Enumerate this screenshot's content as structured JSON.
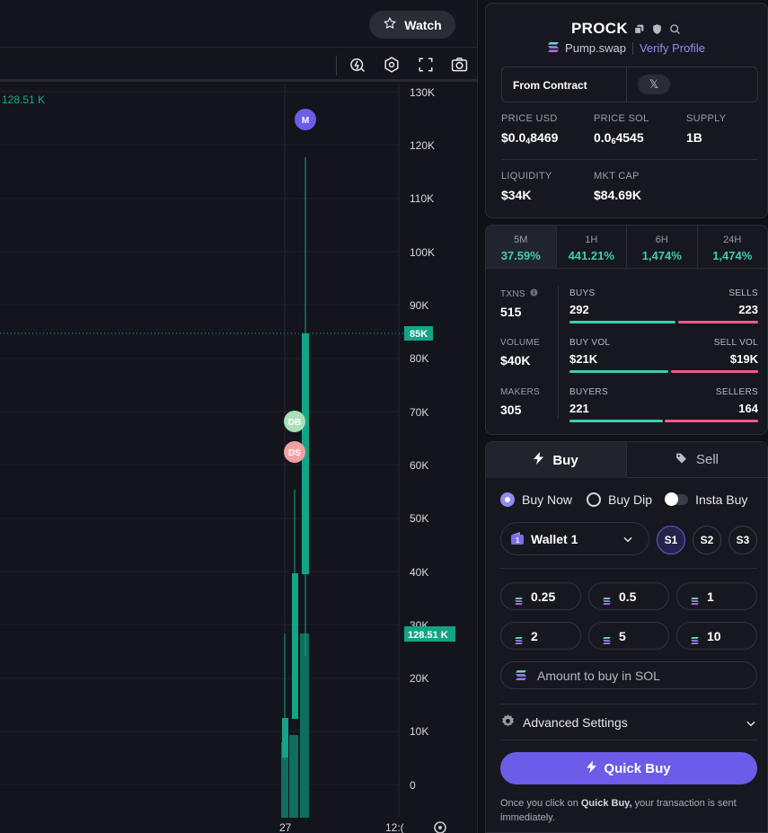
{
  "chart": {
    "watch_label": "Watch",
    "price_tag": "128.51 K",
    "y_ticks": [
      "130K",
      "120K",
      "110K",
      "100K",
      "90K",
      "80K",
      "70K",
      "60K",
      "50K",
      "40K",
      "30K",
      "20K",
      "10K",
      "0"
    ],
    "line_tag": "85K",
    "price_tag_right": "128.51 K",
    "x_labels": [
      "27",
      "12:("
    ],
    "markers": {
      "m": "M",
      "db": "DB",
      "ds": "DS"
    }
  },
  "token": {
    "name": "PROCK",
    "platform": "Pump.swap",
    "verify": "Verify Profile",
    "contract_label": "From Contract",
    "x_label": "𝕏",
    "stats": {
      "price_usd_label": "PRICE USD",
      "price_usd_pre": "$0.0",
      "price_usd_sub": "4",
      "price_usd_post": "8469",
      "price_sol_label": "PRICE SOL",
      "price_sol_pre": "0.0",
      "price_sol_sub": "6",
      "price_sol_post": "4545",
      "supply_label": "SUPPLY",
      "supply": "1B",
      "liquidity_label": "LIQUIDITY",
      "liquidity": "$34K",
      "mktcap_label": "MKT CAP",
      "mktcap": "$84.69K"
    }
  },
  "metrics": {
    "timeframes": [
      {
        "label": "5M",
        "value": "37.59%"
      },
      {
        "label": "1H",
        "value": "441.21%"
      },
      {
        "label": "6H",
        "value": "1,474%"
      },
      {
        "label": "24H",
        "value": "1,474%"
      }
    ],
    "txns_label": "TXNS",
    "txns": "515",
    "volume_label": "VOLUME",
    "volume": "$40K",
    "makers_label": "MAKERS",
    "makers": "305",
    "buys_label": "BUYS",
    "buys": "292",
    "sells_label": "SELLS",
    "sells": "223",
    "buyvol_label": "BUY VOL",
    "buyvol": "$21K",
    "sellvol_label": "SELL VOL",
    "sellvol": "$19K",
    "buyers_label": "BUYERS",
    "buyers": "221",
    "sellers_label": "SELLERS",
    "sellers": "164"
  },
  "trade": {
    "tab_buy": "Buy",
    "tab_sell": "Sell",
    "mode_buy_now": "Buy Now",
    "mode_buy_dip": "Buy Dip",
    "mode_insta": "Insta Buy",
    "wallet": "Wallet 1",
    "slots": [
      "S1",
      "S2",
      "S3"
    ],
    "amounts": [
      "0.25",
      "0.5",
      "1",
      "2",
      "5",
      "10"
    ],
    "amount_placeholder": "Amount to buy in SOL",
    "advanced": "Advanced Settings",
    "quick_buy": "Quick Buy",
    "note_pre": "Once you click on ",
    "note_bold": "Quick Buy,",
    "note_post": " your transaction is sent immediately."
  },
  "colors": {
    "accent": "#6c5ce7",
    "green": "#3ecdb0",
    "red": "#ef5a88",
    "candle": "#13a486"
  }
}
